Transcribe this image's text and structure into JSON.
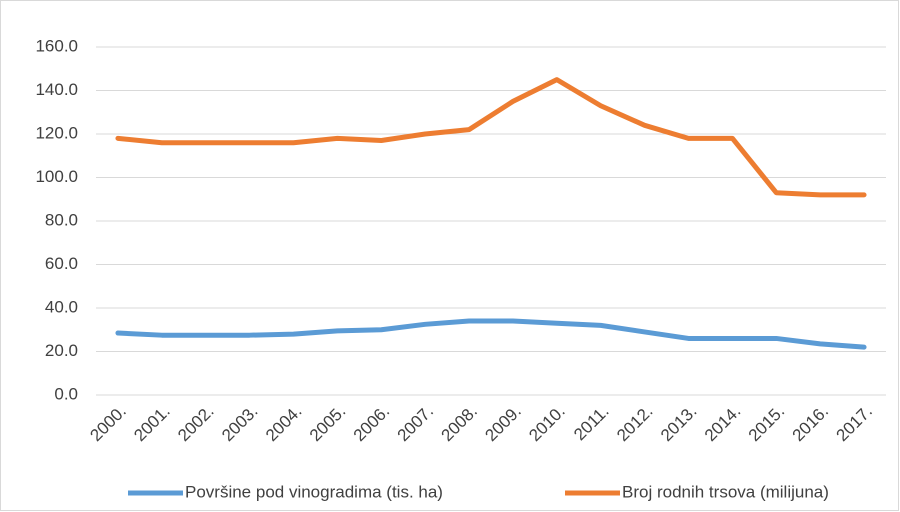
{
  "chart_data": {
    "type": "line",
    "categories": [
      "2000.",
      "2001.",
      "2002.",
      "2003.",
      "2004.",
      "2005.",
      "2006.",
      "2007.",
      "2008.",
      "2009.",
      "2010.",
      "2011.",
      "2012.",
      "2013.",
      "2014.",
      "2015.",
      "2016.",
      "2017."
    ],
    "series": [
      {
        "name": "Površine pod vinogradima (tis. ha)",
        "color": "#5b9bd5",
        "values": [
          28.5,
          27.5,
          27.5,
          27.5,
          28,
          29.5,
          30,
          32.5,
          34,
          34,
          33,
          32,
          29,
          26,
          26,
          26,
          23.5,
          22
        ]
      },
      {
        "name": "Broj rodnih trsova (milijuna)",
        "color": "#ed7d31",
        "values": [
          118,
          116,
          116,
          116,
          116,
          118,
          117,
          120,
          122,
          135,
          145,
          133,
          124,
          118,
          118,
          93,
          92,
          92
        ]
      }
    ],
    "ylim": [
      0,
      160
    ],
    "yticks": [
      {
        "value": 0,
        "label": "0.0"
      },
      {
        "value": 20,
        "label": "20.0"
      },
      {
        "value": 40,
        "label": "40.0"
      },
      {
        "value": 60,
        "label": "60.0"
      },
      {
        "value": 80,
        "label": "80.0"
      },
      {
        "value": 100,
        "label": "100.0"
      },
      {
        "value": 120,
        "label": "120.0"
      },
      {
        "value": 140,
        "label": "140.0"
      },
      {
        "value": 160,
        "label": "160.0"
      }
    ],
    "grid": true,
    "legend": "bottom"
  }
}
